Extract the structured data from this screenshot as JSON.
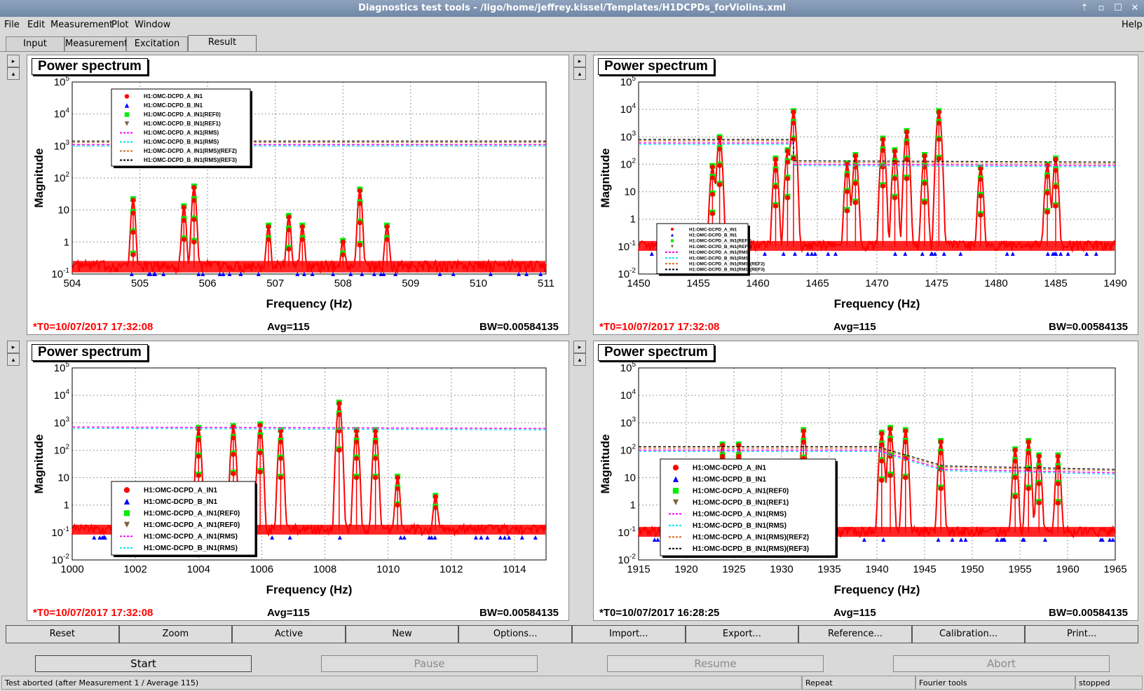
{
  "window": {
    "title": "Diagnostics test tools - /ligo/home/jeffrey.kissel/Templates/H1DCPDs_forViolins.xml",
    "controls": [
      "⇡",
      "▫",
      "☐",
      "✕"
    ]
  },
  "menu": {
    "file": "File",
    "edit": "Edit",
    "measurement": "Measurement",
    "plot": "Plot",
    "window": "Window",
    "help": "Help"
  },
  "tabs": [
    "Input",
    "Measurement",
    "Excitation",
    "Result"
  ],
  "panels": [
    {
      "title": "Power spectrum",
      "ylabel": "Magnitude",
      "xlabel": "Frequency (Hz)",
      "xticks": [
        "504",
        "505",
        "506",
        "507",
        "508",
        "509",
        "510",
        "511"
      ],
      "yticks": [
        "10^5",
        "10^4",
        "10^3",
        "10^2",
        "10",
        "1",
        "10^-1"
      ],
      "t0": "*T0=10/07/2017 17:32:08",
      "t0_color": "#ff0000",
      "avg": "Avg=115",
      "bw": "BW=0.00584135",
      "legend": [
        "H1:OMC-DCPD_A_IN1",
        "H1:OMC-DCPD_B_IN1",
        "H1:OMC-DCPD_A_IN1(REF0)",
        "H1:OMC-DCPD_B_IN1(REF1)",
        "H1:OMC-DCPD_A_IN1(RMS)",
        "H1:OMC-DCPD_B_IN1(RMS)",
        "H1:OMC-DCPD_A_IN1(RMS)(REF2)",
        "H1:OMC-DCPD_B_IN1(RMS)(REF3)"
      ]
    },
    {
      "title": "Power spectrum",
      "ylabel": "Magnitude",
      "xlabel": "Frequency (Hz)",
      "xticks": [
        "1450",
        "1455",
        "1460",
        "1465",
        "1470",
        "1475",
        "1480",
        "1485",
        "1490"
      ],
      "yticks": [
        "10^5",
        "10^4",
        "10^3",
        "10^2",
        "10",
        "1",
        "10^-1",
        "10^-2"
      ],
      "t0": "*T0=10/07/2017 17:32:08",
      "t0_color": "#ff0000",
      "avg": "Avg=115",
      "bw": "BW=0.00584135",
      "legend": [
        "H1:OMC-DCPD_A_IN1",
        "H1:OMC-DCPD_B_IN1",
        "H1:OMC-DCPD_A_IN1(REF0)",
        "H1:OMC-DCPD_B_IN1(REF1)",
        "H1:OMC-DCPD_A_IN1(RMS)",
        "H1:OMC-DCPD_B_IN1(RMS)",
        "H1:OMC-DCPD_A_IN1(RMS)(REF2)",
        "H1:OMC-DCPD_B_IN1(RMS)(REF3)"
      ]
    },
    {
      "title": "Power spectrum",
      "ylabel": "Magnitude",
      "xlabel": "Frequency (Hz)",
      "xticks": [
        "1000",
        "1002",
        "1004",
        "1006",
        "1008",
        "1010",
        "1012",
        "1014"
      ],
      "yticks": [
        "10^5",
        "10^4",
        "10^3",
        "10^2",
        "10",
        "1",
        "10^-1",
        "10^-2"
      ],
      "t0": "*T0=10/07/2017 17:32:08",
      "t0_color": "#ff0000",
      "avg": "Avg=115",
      "bw": "BW=0.00584135",
      "legend": [
        "H1:OMC-DCPD_A_IN1",
        "H1:OMC-DCPD_B_IN1",
        "H1:OMC-DCPD_A_IN1(REF0)",
        "H1:OMC-DCPD_A_IN1(REF0)",
        "H1:OMC-DCPD_A_IN1(RMS)",
        "H1:OMC-DCPD_B_IN1(RMS)"
      ]
    },
    {
      "title": "Power spectrum",
      "ylabel": "Magnitude",
      "xlabel": "Frequency (Hz)",
      "xticks": [
        "1915",
        "1920",
        "1925",
        "1930",
        "1935",
        "1940",
        "1945",
        "1950",
        "1955",
        "1960",
        "1965"
      ],
      "yticks": [
        "10^5",
        "10^4",
        "10^3",
        "10^2",
        "10",
        "1",
        "10^-1",
        "10^-2"
      ],
      "t0": "*T0=10/07/2017 16:28:25",
      "t0_color": "#000000",
      "avg": "Avg=115",
      "bw": "BW=0.00584135",
      "legend": [
        "H1:OMC-DCPD_A_IN1",
        "H1:OMC-DCPD_B_IN1",
        "H1:OMC-DCPD_A_IN1(REF0)",
        "H1:OMC-DCPD_B_IN1(REF1)",
        "H1:OMC-DCPD_A_IN1(RMS)",
        "H1:OMC-DCPD_B_IN1(RMS)",
        "H1:OMC-DCPD_A_IN1(RMS)(REF2)",
        "H1:OMC-DCPD_B_IN1(RMS)(REF3)"
      ]
    }
  ],
  "series_styles": [
    {
      "marker": "circle",
      "color": "#ff0000"
    },
    {
      "marker": "triangle",
      "color": "#0000ff"
    },
    {
      "marker": "square",
      "color": "#00ee00"
    },
    {
      "marker": "triangle-down",
      "color": "#806040"
    },
    {
      "marker": "dash",
      "color": "#ff00ff"
    },
    {
      "marker": "dash",
      "color": "#00e5ee"
    },
    {
      "marker": "dash",
      "color": "#d2691e"
    },
    {
      "marker": "dash",
      "color": "#000000"
    }
  ],
  "chart_data": [
    {
      "type": "line",
      "xlim": [
        504,
        511
      ],
      "ylim": [
        0.1,
        100000
      ],
      "yscale": "log",
      "grid": true,
      "legend_placement": "top-left",
      "peaks": [
        [
          504.9,
          20
        ],
        [
          505.65,
          12
        ],
        [
          505.8,
          50
        ],
        [
          506.9,
          3
        ],
        [
          507.2,
          6
        ],
        [
          507.4,
          3
        ],
        [
          508.0,
          1
        ],
        [
          508.25,
          40
        ],
        [
          508.65,
          3
        ]
      ],
      "floor": 0.16,
      "rms": [
        [
          504,
          1100
        ],
        [
          511,
          1100
        ]
      ]
    },
    {
      "type": "line",
      "xlim": [
        1450,
        1490
      ],
      "ylim": [
        0.01,
        100000
      ],
      "yscale": "log",
      "grid": true,
      "legend_placement": "bottom-left",
      "peaks": [
        [
          1456.2,
          80
        ],
        [
          1456.8,
          900
        ],
        [
          1461.5,
          150
        ],
        [
          1462.5,
          300
        ],
        [
          1463.0,
          8000
        ],
        [
          1467.5,
          100
        ],
        [
          1468.2,
          200
        ],
        [
          1470.5,
          800
        ],
        [
          1471.5,
          300
        ],
        [
          1472.5,
          1500
        ],
        [
          1474.0,
          200
        ],
        [
          1475.2,
          8000
        ],
        [
          1478.7,
          70
        ],
        [
          1484.3,
          90
        ],
        [
          1485.0,
          150
        ]
      ],
      "floor": 0.1,
      "rms": [
        [
          1450,
          600
        ],
        [
          1463,
          600
        ],
        [
          1463,
          100
        ],
        [
          1490,
          90
        ]
      ]
    },
    {
      "type": "line",
      "xlim": [
        1000,
        1015
      ],
      "ylim": [
        0.01,
        100000
      ],
      "yscale": "log",
      "grid": true,
      "legend_placement": "bottom-left",
      "peaks": [
        [
          1004.0,
          600
        ],
        [
          1005.1,
          700
        ],
        [
          1005.95,
          800
        ],
        [
          1006.6,
          500
        ],
        [
          1008.45,
          5000
        ],
        [
          1009.0,
          500
        ],
        [
          1009.6,
          500
        ],
        [
          1010.3,
          10
        ],
        [
          1011.5,
          2
        ]
      ],
      "floor": 0.12,
      "rms": [
        [
          1000,
          700
        ],
        [
          1015,
          620
        ]
      ]
    },
    {
      "type": "line",
      "xlim": [
        1915,
        1965
      ],
      "ylim": [
        0.01,
        100000
      ],
      "yscale": "log",
      "grid": true,
      "legend_placement": "bottom-left",
      "peaks": [
        [
          1923.8,
          150
        ],
        [
          1925.5,
          150
        ],
        [
          1932.3,
          500
        ],
        [
          1940.5,
          400
        ],
        [
          1941.4,
          600
        ],
        [
          1943.0,
          500
        ],
        [
          1946.7,
          200
        ],
        [
          1954.5,
          100
        ],
        [
          1955.9,
          200
        ],
        [
          1957.0,
          60
        ],
        [
          1959.0,
          60
        ]
      ],
      "floor": 0.1,
      "rms": [
        [
          1915,
          100
        ],
        [
          1940,
          100
        ],
        [
          1944,
          40
        ],
        [
          1947,
          20
        ],
        [
          1965,
          15
        ]
      ]
    }
  ],
  "buttons": [
    "Reset",
    "Zoom",
    "Active",
    "New",
    "Options...",
    "Import...",
    "Export...",
    "Reference...",
    "Calibration...",
    "Print..."
  ],
  "actions": {
    "start": "Start",
    "pause": "Pause",
    "resume": "Resume",
    "abort": "Abort"
  },
  "status": {
    "message": "Test aborted (after Measurement 1 / Average 115)",
    "repeat": "Repeat",
    "tools": "Fourier tools",
    "state": "stopped"
  }
}
